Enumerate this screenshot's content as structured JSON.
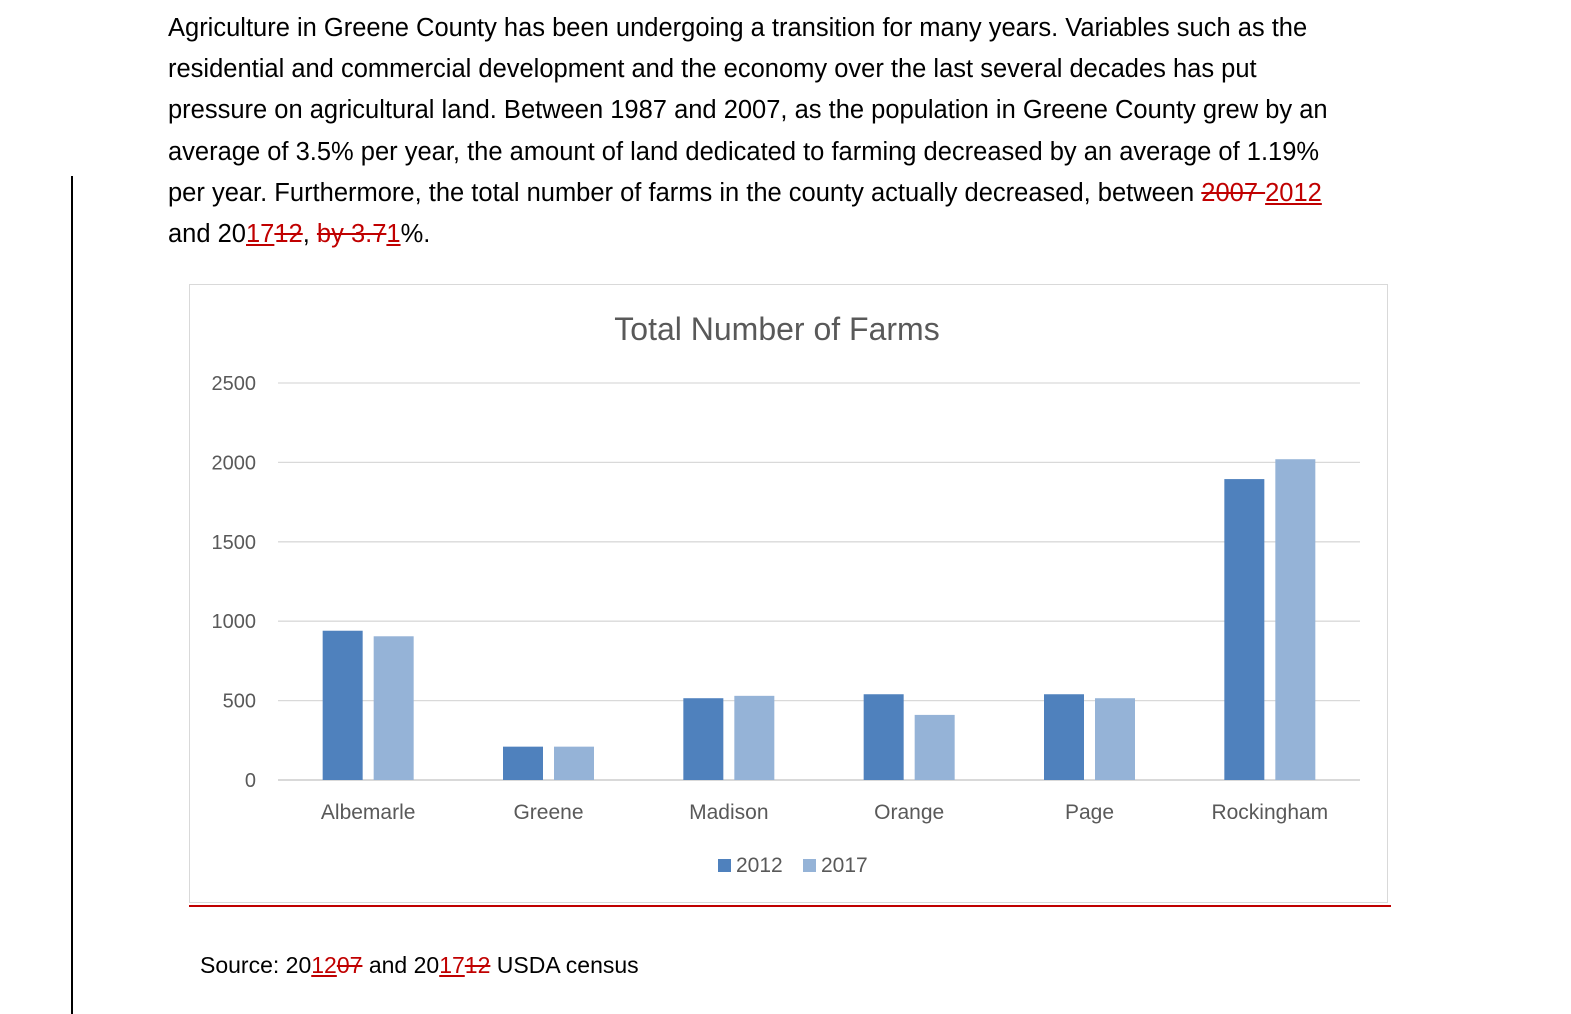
{
  "paragraph": {
    "line1": "Agriculture in Greene County has been undergoing a transition for many years. Variables such as the",
    "line2": "residential and commercial development and the economy over the last several decades has put",
    "line3": "pressure on agricultural land. Between 1987 and 2007, as the population in Greene County grew by an",
    "line4": "average of 3.5% per year, the amount of land dedicated to farming decreased by an average of 1.19%",
    "line5_text": "per year. Furthermore, the total number of farms in the county actually decreased, between ",
    "line5_deleted": "2007 ",
    "line5_inserted": "2012",
    "line6_a": "and 20",
    "line6_ins1": "17",
    "line6_del1": "12",
    "line6_b": ", ",
    "line6_del2": "by 3.7",
    "line6_ins2": "1",
    "line6_c": "%."
  },
  "source": {
    "prefix": "Source:  20",
    "ins1": "12",
    "del1": "07",
    "middle": " and 20",
    "ins2": "17",
    "del2": "12",
    "suffix": " USDA census"
  },
  "colors": {
    "series_2012": "#4f81bd",
    "series_2017": "#95b3d7",
    "track_changes": "#c00000",
    "gridline": "#d9d9d9",
    "text_gray": "#595959"
  },
  "chart_data": {
    "type": "bar",
    "title": "Total Number of Farms",
    "categories": [
      "Albemarle",
      "Greene",
      "Madison",
      "Orange",
      "Page",
      "Rockingham"
    ],
    "series": [
      {
        "name": "2012",
        "values": [
          940,
          210,
          515,
          540,
          540,
          1895
        ]
      },
      {
        "name": "2017",
        "values": [
          905,
          210,
          530,
          410,
          515,
          2020
        ]
      }
    ],
    "yticks": [
      "0",
      "500",
      "1000",
      "1500",
      "2000",
      "2500"
    ],
    "ylim": [
      0,
      2500
    ],
    "grid": true,
    "legend": "bottom",
    "xlabel": "",
    "ylabel": ""
  }
}
